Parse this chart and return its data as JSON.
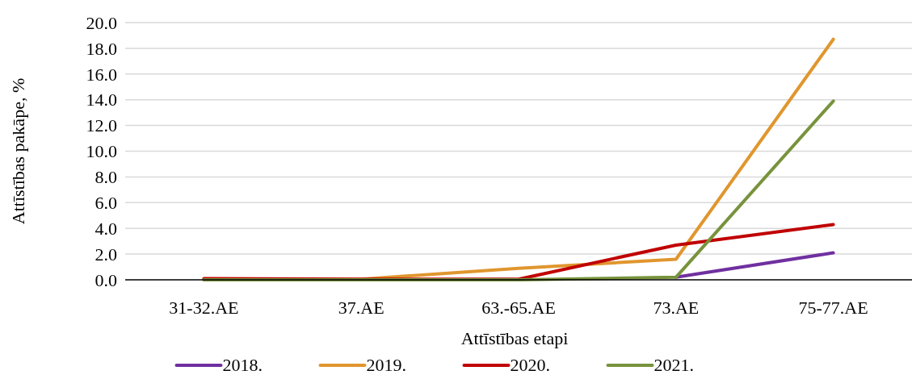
{
  "chart_data": {
    "type": "line",
    "xlabel": "Attīstības etapi",
    "ylabel": "Attīstības pakāpe, %",
    "categories": [
      "31-32.AE",
      "37.AE",
      "63.-65.AE",
      "73.AE",
      "75-77.AE"
    ],
    "series": [
      {
        "name": "2018.",
        "color": "#7030a0",
        "values": [
          null,
          null,
          null,
          0.2,
          2.1
        ]
      },
      {
        "name": "2019.",
        "color": "#e0962e",
        "values": [
          0,
          0.05,
          0.9,
          1.6,
          18.7
        ]
      },
      {
        "name": "2020.",
        "color": "#c00000",
        "values": [
          0.1,
          0.05,
          0.05,
          2.7,
          4.3
        ]
      },
      {
        "name": "2021.",
        "color": "#77933c",
        "values": [
          0,
          0,
          0,
          0.2,
          13.9
        ]
      }
    ],
    "ylim": [
      0,
      20
    ],
    "yticks": [
      {
        "value": 0,
        "label": "0.0"
      },
      {
        "value": 2,
        "label": "2.0"
      },
      {
        "value": 4,
        "label": "4.0"
      },
      {
        "value": 6,
        "label": "6.0"
      },
      {
        "value": 8,
        "label": "8.0"
      },
      {
        "value": 10,
        "label": "10.0"
      },
      {
        "value": 12,
        "label": "12.0"
      },
      {
        "value": 14,
        "label": "14.0"
      },
      {
        "value": 16,
        "label": "16.0"
      },
      {
        "value": 18,
        "label": "18.0"
      },
      {
        "value": 20,
        "label": "20.0"
      }
    ],
    "grid": "y",
    "legend": "bottom",
    "marker": "none",
    "line_style": "solid"
  }
}
